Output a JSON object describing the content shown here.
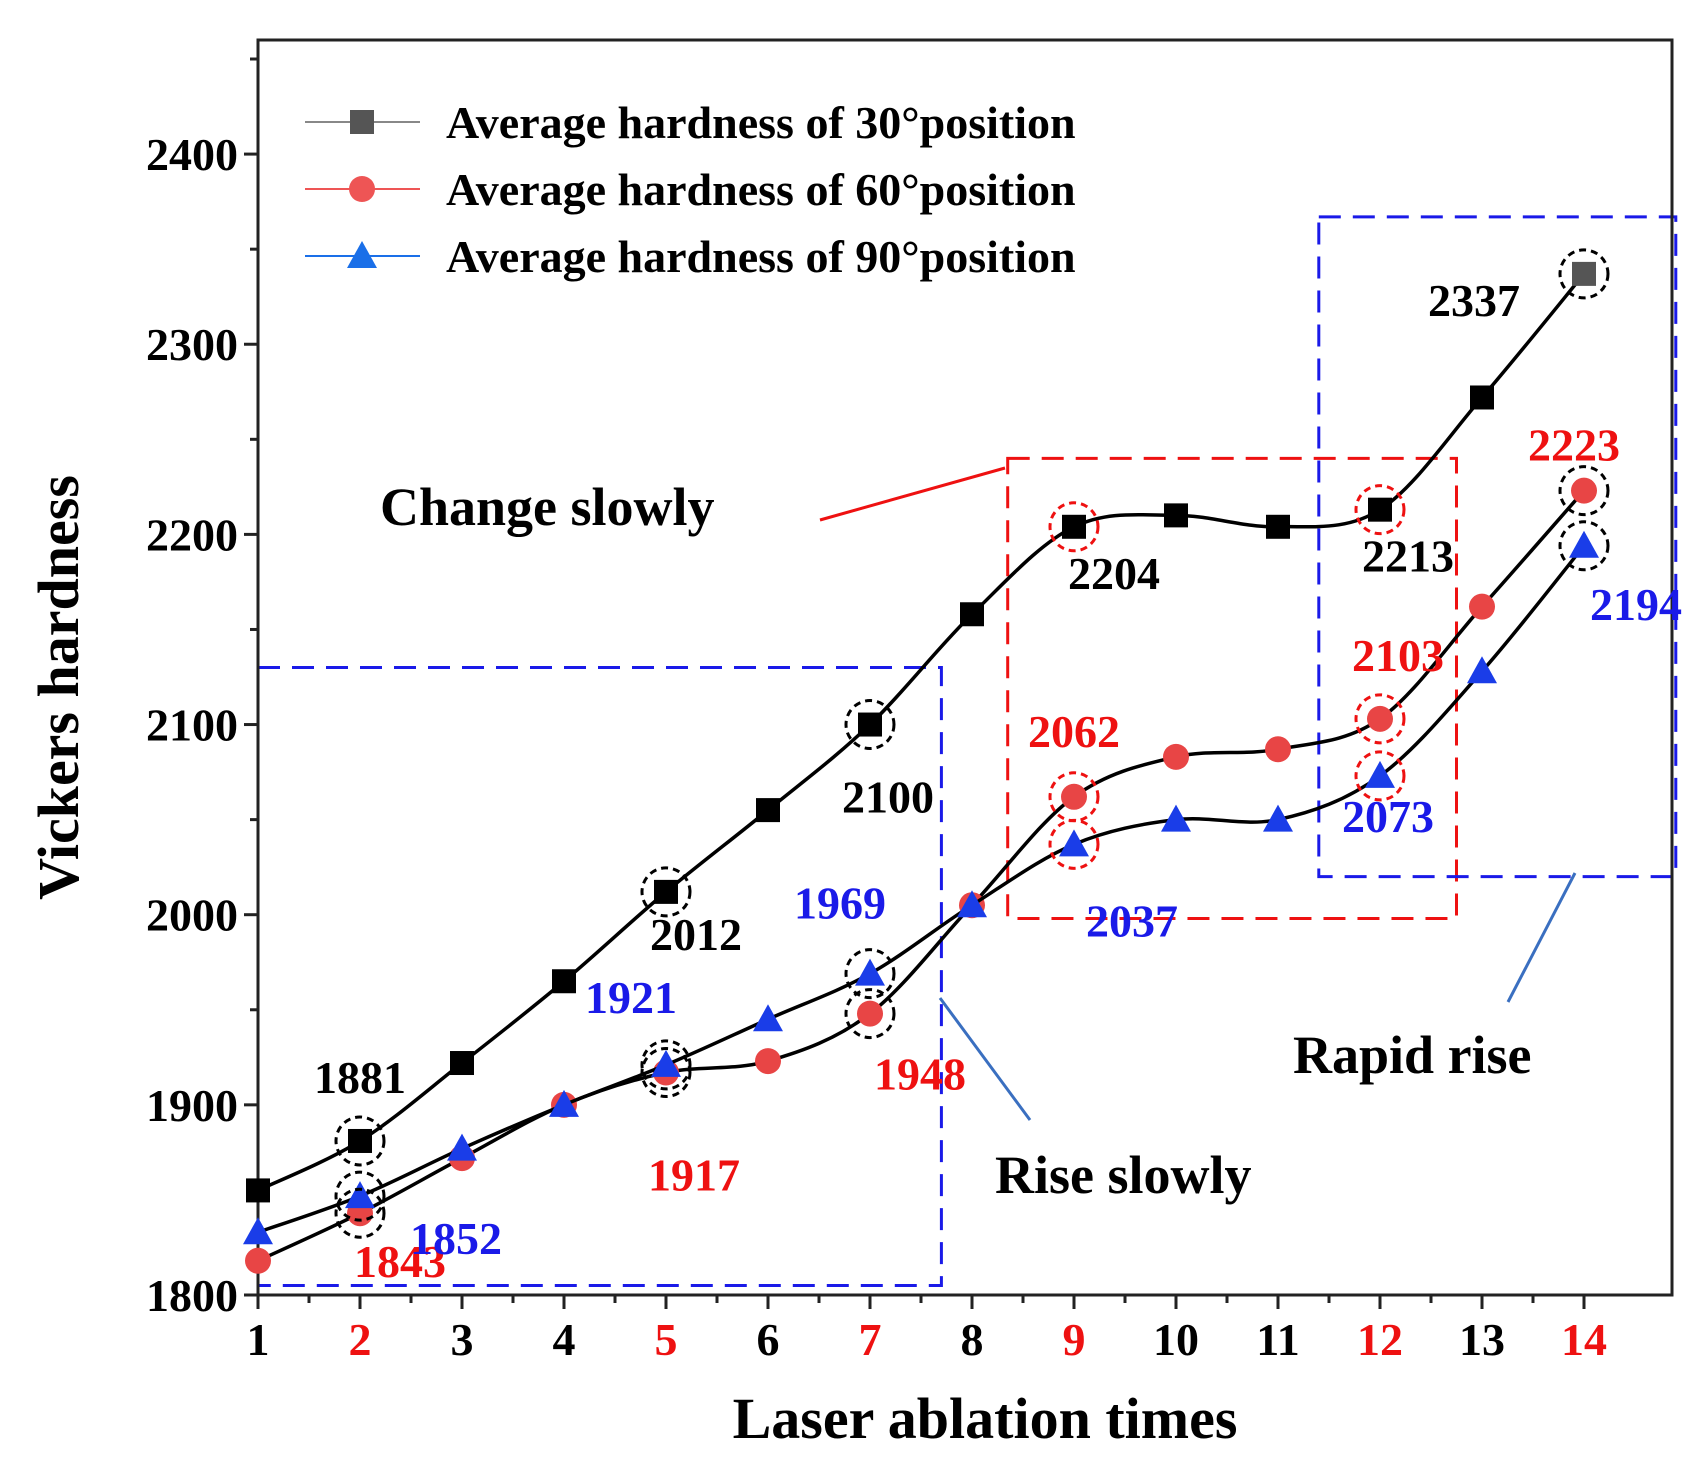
{
  "chart_data": {
    "type": "line",
    "xlabel": "Laser ablation times",
    "ylabel": "Vickers hardness",
    "xlim": [
      1,
      14.9
    ],
    "ylim": [
      1800,
      2460
    ],
    "x_ticks": [
      1,
      2,
      3,
      4,
      5,
      6,
      7,
      8,
      9,
      10,
      11,
      12,
      13,
      14
    ],
    "x_tick_labels": [
      "1",
      "2",
      "3",
      "4",
      "5",
      "6",
      "7",
      "8",
      "9",
      "10",
      "11",
      "12",
      "13",
      "14"
    ],
    "highlighted_x_ticks": [
      2,
      5,
      7,
      9,
      12,
      14
    ],
    "y_ticks": [
      1800,
      1900,
      2000,
      2100,
      2200,
      2300,
      2400
    ],
    "y_tick_labels": [
      "1800",
      "1900",
      "2000",
      "2100",
      "2200",
      "2300",
      "2400"
    ],
    "series": [
      {
        "name": "Average hardness of 30°position",
        "color": "#000000",
        "legend_color": "#555555",
        "marker": "square",
        "x": [
          1,
          2,
          3,
          4,
          5,
          6,
          7,
          8,
          9,
          10,
          11,
          12,
          13,
          14
        ],
        "values": [
          1855,
          1881,
          1922,
          1965,
          2012,
          2055,
          2100,
          2158,
          2204,
          2210,
          2204,
          2213,
          2272,
          2337
        ]
      },
      {
        "name": "Average hardness of 60°position",
        "color": "#e84545",
        "legend_color": "#ee5555",
        "marker": "circle",
        "x": [
          1,
          2,
          3,
          4,
          5,
          6,
          7,
          8,
          9,
          10,
          11,
          12,
          13,
          14
        ],
        "values": [
          1818,
          1843,
          1872,
          1900,
          1917,
          1923,
          1948,
          2005,
          2062,
          2083,
          2087,
          2103,
          2162,
          2223
        ]
      },
      {
        "name": "Average hardness of 90°position",
        "color": "#1a3de8",
        "legend_color": "#1a6fe8",
        "marker": "triangle",
        "x": [
          1,
          2,
          3,
          4,
          5,
          6,
          7,
          8,
          9,
          10,
          11,
          12,
          13,
          14
        ],
        "values": [
          1833,
          1852,
          1877,
          1900,
          1921,
          1945,
          1969,
          2005,
          2037,
          2050,
          2050,
          2073,
          2128,
          2194
        ]
      }
    ],
    "data_labels": [
      {
        "text": "1881",
        "series": 0,
        "x": 2,
        "color": "#000000"
      },
      {
        "text": "2012",
        "series": 0,
        "x": 5,
        "color": "#000000"
      },
      {
        "text": "2100",
        "series": 0,
        "x": 7,
        "color": "#000000"
      },
      {
        "text": "2204",
        "series": 0,
        "x": 9,
        "color": "#000000"
      },
      {
        "text": "2213",
        "series": 0,
        "x": 12,
        "color": "#000000"
      },
      {
        "text": "2337",
        "series": 0,
        "x": 14,
        "color": "#000000"
      },
      {
        "text": "1843",
        "series": 1,
        "x": 2,
        "color": "#ee1111"
      },
      {
        "text": "1917",
        "series": 1,
        "x": 5,
        "color": "#ee1111"
      },
      {
        "text": "1948",
        "series": 1,
        "x": 7,
        "color": "#ee1111"
      },
      {
        "text": "2062",
        "series": 1,
        "x": 9,
        "color": "#ee1111"
      },
      {
        "text": "2103",
        "series": 1,
        "x": 12,
        "color": "#ee1111"
      },
      {
        "text": "2223",
        "series": 1,
        "x": 14,
        "color": "#ee1111"
      },
      {
        "text": "1852",
        "series": 2,
        "x": 2,
        "color": "#1a1ae8"
      },
      {
        "text": "1921",
        "series": 2,
        "x": 5,
        "color": "#1a1ae8"
      },
      {
        "text": "1969",
        "series": 2,
        "x": 7,
        "color": "#1a1ae8"
      },
      {
        "text": "2037",
        "series": 2,
        "x": 9,
        "color": "#1a1ae8"
      },
      {
        "text": "2073",
        "series": 2,
        "x": 12,
        "color": "#1a1ae8"
      },
      {
        "text": "2194",
        "series": 2,
        "x": 14,
        "color": "#1a1ae8"
      }
    ],
    "highlight_circles": [
      {
        "series": 0,
        "x": 2,
        "color": "#000000"
      },
      {
        "series": 0,
        "x": 5,
        "color": "#000000"
      },
      {
        "series": 0,
        "x": 7,
        "color": "#000000"
      },
      {
        "series": 0,
        "x": 9,
        "color": "#ee1111"
      },
      {
        "series": 0,
        "x": 12,
        "color": "#ee1111"
      },
      {
        "series": 0,
        "x": 14,
        "color": "#000000"
      },
      {
        "series": 1,
        "x": 2,
        "color": "#000000"
      },
      {
        "series": 1,
        "x": 5,
        "color": "#000000"
      },
      {
        "series": 1,
        "x": 7,
        "color": "#000000"
      },
      {
        "series": 1,
        "x": 9,
        "color": "#ee1111"
      },
      {
        "series": 1,
        "x": 12,
        "color": "#ee1111"
      },
      {
        "series": 1,
        "x": 14,
        "color": "#000000"
      },
      {
        "series": 2,
        "x": 2,
        "color": "#000000"
      },
      {
        "series": 2,
        "x": 5,
        "color": "#000000"
      },
      {
        "series": 2,
        "x": 7,
        "color": "#000000"
      },
      {
        "series": 2,
        "x": 9,
        "color": "#ee1111"
      },
      {
        "series": 2,
        "x": 12,
        "color": "#ee1111"
      },
      {
        "series": 2,
        "x": 14,
        "color": "#000000"
      }
    ],
    "regions": [
      {
        "label": "Rise slowly",
        "color": "#1a1ae8",
        "x_range": [
          1,
          7.7
        ],
        "y_range": [
          1805,
          2130
        ]
      },
      {
        "label": "Change slowly",
        "color": "#ee1111",
        "x_range": [
          8.35,
          12.75
        ],
        "y_range": [
          1998,
          2240
        ]
      },
      {
        "label": "Rapid rise",
        "color": "#1a1ae8",
        "x_range": [
          11.4,
          14.9
        ],
        "y_range": [
          2020,
          2367
        ]
      }
    ],
    "annotations": [
      "Change slowly",
      "Rise slowly",
      "Rapid rise"
    ],
    "legend_position": "top-left"
  }
}
